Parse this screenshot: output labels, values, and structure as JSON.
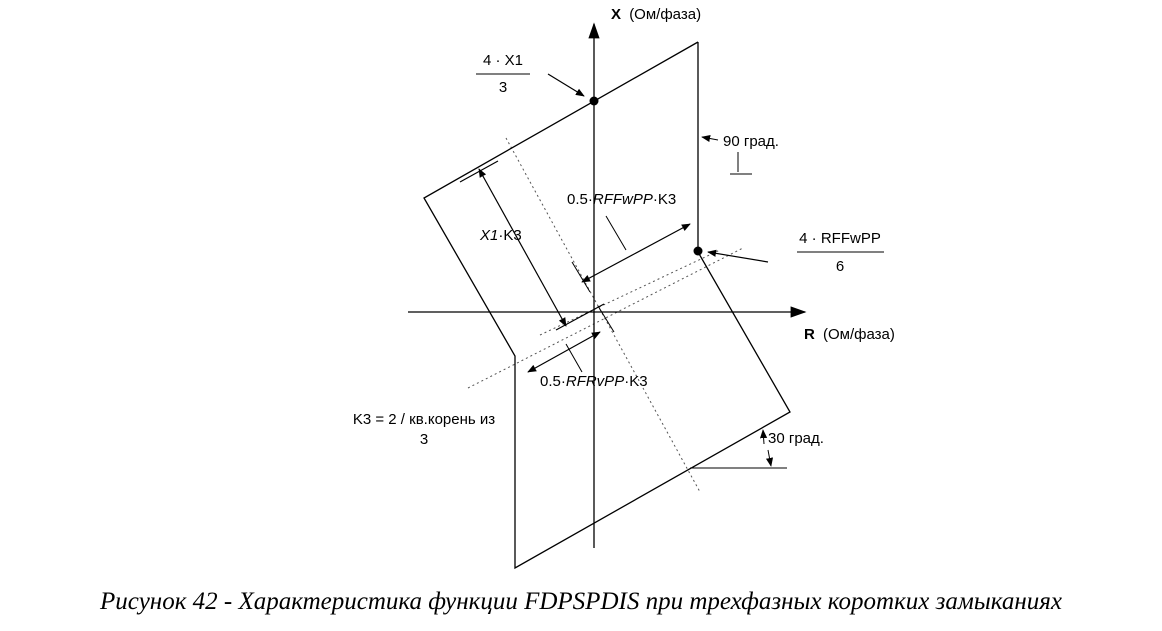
{
  "axes": {
    "x_axis_label_bold": "R",
    "x_axis_label_unit": "(Ом/фаза)",
    "y_axis_label_bold": "X",
    "y_axis_label_unit": "(Ом/фаза)"
  },
  "annotations": {
    "top_fraction_numerator": "4 · X1",
    "top_fraction_denominator": "3",
    "right_fraction_numerator": "4 · RFFwPP",
    "right_fraction_denominator": "6",
    "angle_90": "90 град.",
    "angle_30": "30 град.",
    "x1_k3_italic": "X1",
    "x1_k3_rest": "·K3",
    "rffw_prefix": "0.5·",
    "rffw_italic": "RFFwPP",
    "rffw_suffix": "·K3",
    "rfrv_prefix": "0.5·",
    "rfrv_italic": "RFRvPP",
    "rfrv_suffix": "·K3",
    "k3_line1": "K3 = 2 / кв.корень из",
    "k3_line2": "3"
  },
  "caption": "Рисунок 42 - Характеристика функции FDPSPDIS при трехфазных коротких замыканиях",
  "colors": {
    "line": "#000000",
    "dotted": "#555555",
    "background": "#ffffff"
  }
}
